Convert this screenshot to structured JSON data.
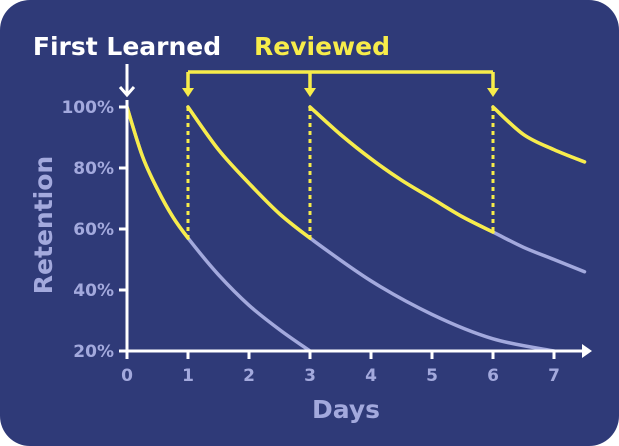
{
  "chart_data": {
    "type": "line",
    "xlabel": "Days",
    "ylabel": "Retention",
    "x_ticks": [
      "0",
      "1",
      "2",
      "3",
      "4",
      "5",
      "6",
      "7"
    ],
    "y_ticks": [
      "20%",
      "40%",
      "60%",
      "80%",
      "100%"
    ],
    "xlim": [
      0,
      7.5
    ],
    "ylim": [
      20,
      100
    ],
    "annotations": {
      "first_learned": "First Learned",
      "reviewed": "Reviewed"
    },
    "first_learned_day": 0,
    "review_days": [
      1,
      3,
      6
    ],
    "series": [
      {
        "start_day": 0,
        "points": [
          [
            0,
            100
          ],
          [
            0.25,
            84
          ],
          [
            0.5,
            73
          ],
          [
            0.75,
            64
          ],
          [
            1,
            57
          ],
          [
            1.5,
            45
          ],
          [
            2,
            35
          ],
          [
            2.5,
            27
          ],
          [
            3,
            20
          ]
        ]
      },
      {
        "start_day": 1,
        "points": [
          [
            1,
            100
          ],
          [
            1.5,
            86
          ],
          [
            2,
            75
          ],
          [
            2.5,
            65
          ],
          [
            3,
            57
          ],
          [
            4,
            43
          ],
          [
            5,
            32
          ],
          [
            6,
            24
          ],
          [
            7,
            20
          ]
        ]
      },
      {
        "start_day": 3,
        "points": [
          [
            3,
            100
          ],
          [
            3.5,
            91
          ],
          [
            4,
            83
          ],
          [
            4.5,
            76
          ],
          [
            5,
            70
          ],
          [
            5.5,
            64
          ],
          [
            6,
            59
          ],
          [
            6.5,
            54
          ],
          [
            7,
            50
          ],
          [
            7.5,
            46
          ]
        ]
      },
      {
        "start_day": 6,
        "points": [
          [
            6,
            100
          ],
          [
            6.5,
            91
          ],
          [
            7,
            86
          ],
          [
            7.5,
            82
          ]
        ]
      }
    ],
    "colors": {
      "background": "#2f3a78",
      "reviewed_segment": "#f7ec4a",
      "decay_segment": "#a3a9dd",
      "axis": "#ffffff",
      "first_learned": "#ffffff"
    },
    "grid": false
  }
}
